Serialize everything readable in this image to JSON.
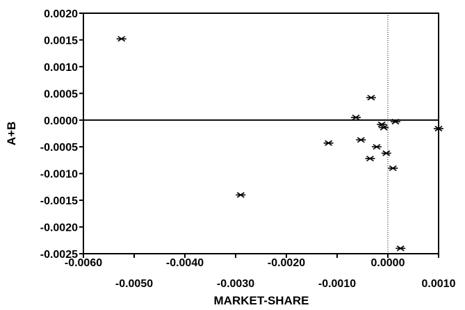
{
  "chart_data": {
    "type": "scatter",
    "title": "",
    "xlabel": "MARKET-SHARE",
    "ylabel": "A+B",
    "xlim": [
      -0.006,
      0.001
    ],
    "ylim": [
      -0.0025,
      0.002
    ],
    "x_ticks_upper": [
      "-0.0060",
      "-0.0040",
      "-0.0020",
      "0.0000"
    ],
    "x_ticks_lower": [
      "-0.0050",
      "-0.0030",
      "-0.0010",
      "0.0010"
    ],
    "y_ticks": [
      "0.0020",
      "0.0015",
      "0.0010",
      "0.0005",
      "0.0000",
      "-0.0005",
      "-0.0010",
      "-0.0015",
      "-0.0020",
      "-0.0025"
    ],
    "reference_lines": {
      "x": 0.0,
      "y": 0.0
    },
    "marker": "asterisk",
    "grid": false,
    "points": [
      {
        "x": -0.00525,
        "y": 0.00152
      },
      {
        "x": -0.0029,
        "y": -0.0014
      },
      {
        "x": -0.00117,
        "y": -0.00043
      },
      {
        "x": -0.00063,
        "y": 5e-05
      },
      {
        "x": -0.00053,
        "y": -0.00037
      },
      {
        "x": -0.00033,
        "y": 0.00042
      },
      {
        "x": -0.00035,
        "y": -0.00072
      },
      {
        "x": -0.00022,
        "y": -0.0005
      },
      {
        "x": -0.00012,
        "y": -8e-05
      },
      {
        "x": -8e-05,
        "y": -0.00014
      },
      {
        "x": -3e-05,
        "y": -0.00062
      },
      {
        "x": 0.00015,
        "y": -3e-05
      },
      {
        "x": 0.0001,
        "y": -0.0009
      },
      {
        "x": 0.00025,
        "y": -0.0024
      },
      {
        "x": 0.001,
        "y": -0.00016
      }
    ]
  }
}
